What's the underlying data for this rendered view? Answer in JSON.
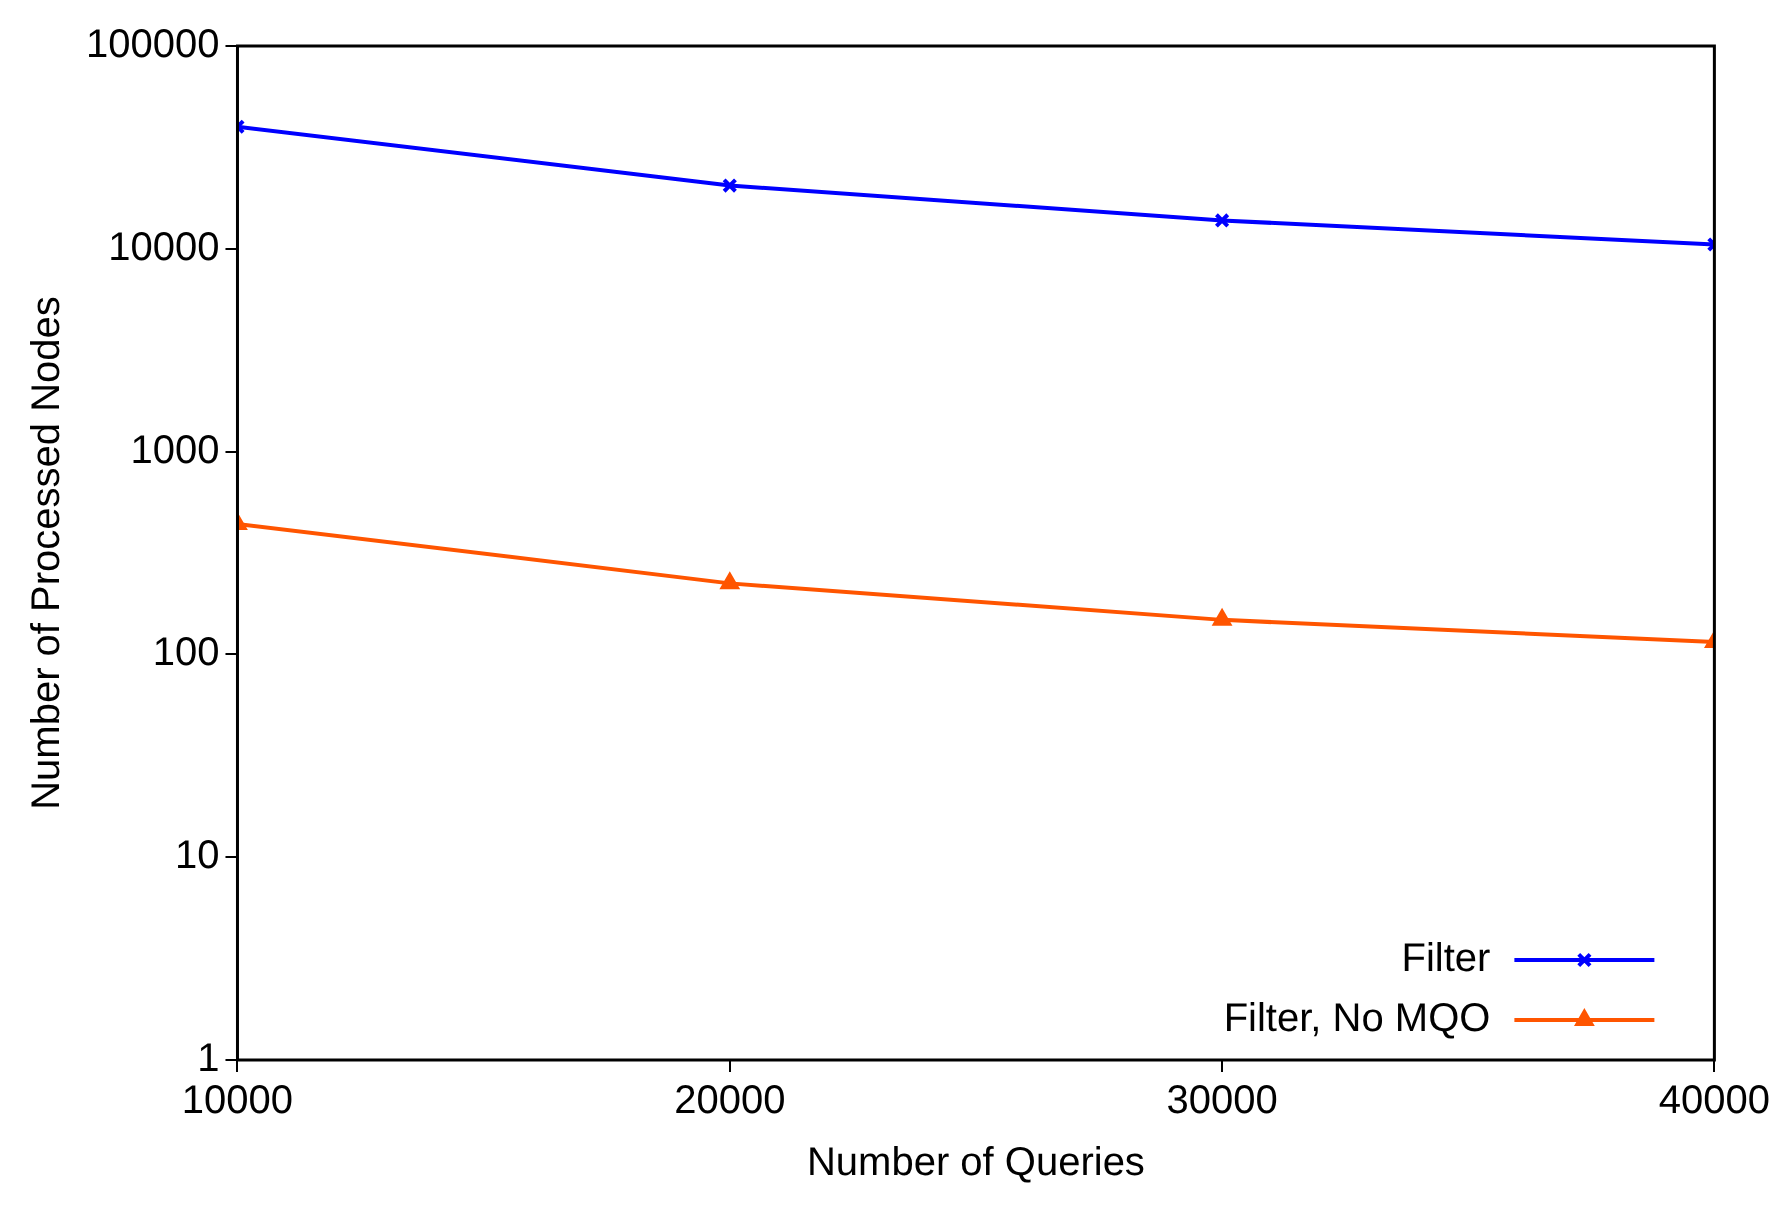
{
  "chart_data": {
    "type": "line",
    "xlabel": "Number of Queries",
    "ylabel": "Number of Processed Nodes",
    "x": [
      10000,
      20000,
      30000,
      40000
    ],
    "series": [
      {
        "name": "Filter",
        "color": "#0000ff",
        "marker": "cross",
        "values": [
          40000,
          20500,
          13800,
          10500
        ]
      },
      {
        "name": "Filter, No MQO",
        "color": "#ff5500",
        "marker": "triangle",
        "values": [
          440,
          224,
          148,
          115
        ]
      }
    ],
    "xlim": [
      10000,
      40000
    ],
    "xticks": [
      10000,
      20000,
      30000,
      40000
    ],
    "ylim": [
      1,
      100000
    ],
    "yticks": [
      1,
      10,
      100,
      1000,
      10000,
      100000
    ],
    "log": "y",
    "grid": false,
    "legend": "bottom right"
  }
}
